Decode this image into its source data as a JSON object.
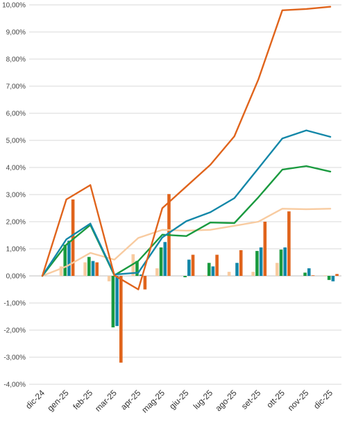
{
  "chart_data": {
    "type": "bar+line",
    "title": "",
    "xlabel": "",
    "ylabel": "",
    "ylim": [
      -4,
      10
    ],
    "y_step": 1,
    "y_tick_labels": [
      "-4,00%",
      "-3,00%",
      "-2,00%",
      "-1,00%",
      "0,00%",
      "1,00%",
      "2,00%",
      "3,00%",
      "4,00%",
      "5,00%",
      "6,00%",
      "7,00%",
      "8,00%",
      "9,00%",
      "10,00%"
    ],
    "categories": [
      "dic-24",
      "gen-25",
      "feb-25",
      "mar-25",
      "apr-25",
      "mag-25",
      "giu-25",
      "lug-25",
      "ago-25",
      "set-25",
      "ott-25",
      "nov-25",
      "dic-25"
    ],
    "grid": true,
    "legend": "none",
    "bar_series": [
      {
        "color": "#f8cba0",
        "values": [
          0,
          0.35,
          0.5,
          -0.2,
          0.8,
          0.28,
          0.0,
          0.02,
          0.15,
          0.15,
          0.48,
          0.0,
          0.02
        ]
      },
      {
        "color": "#1a9a3f",
        "values": [
          0,
          1.15,
          0.7,
          -1.9,
          0.55,
          1.05,
          -0.05,
          0.48,
          0.0,
          0.92,
          0.97,
          0.12,
          -0.15
        ]
      },
      {
        "color": "#1387a8",
        "values": [
          0,
          1.3,
          0.55,
          -1.85,
          0.05,
          1.25,
          0.6,
          0.35,
          0.48,
          1.05,
          1.05,
          0.28,
          -0.2
        ]
      },
      {
        "color": "#e0641c",
        "values": [
          0,
          2.82,
          0.5,
          -3.2,
          -0.5,
          3.02,
          0.78,
          0.78,
          0.95,
          2.0,
          2.38,
          0.02,
          0.07
        ]
      }
    ],
    "line_series": [
      {
        "color": "#f8cba0",
        "values": [
          0,
          0.35,
          0.85,
          0.6,
          1.4,
          1.7,
          1.67,
          1.7,
          1.85,
          2.0,
          2.48,
          2.46,
          2.48
        ]
      },
      {
        "color": "#1a9a3f",
        "values": [
          0,
          1.15,
          1.88,
          0.02,
          0.55,
          1.52,
          1.47,
          1.97,
          1.95,
          2.9,
          3.92,
          4.05,
          3.85
        ]
      },
      {
        "color": "#1387a8",
        "values": [
          0,
          1.35,
          1.93,
          0.05,
          0.12,
          1.42,
          2.02,
          2.35,
          2.87,
          3.97,
          5.07,
          5.37,
          5.13
        ]
      },
      {
        "color": "#e0641c",
        "values": [
          0,
          2.82,
          3.35,
          0.02,
          -0.5,
          2.5,
          3.3,
          4.1,
          5.15,
          7.25,
          9.8,
          9.85,
          9.93
        ]
      }
    ]
  }
}
